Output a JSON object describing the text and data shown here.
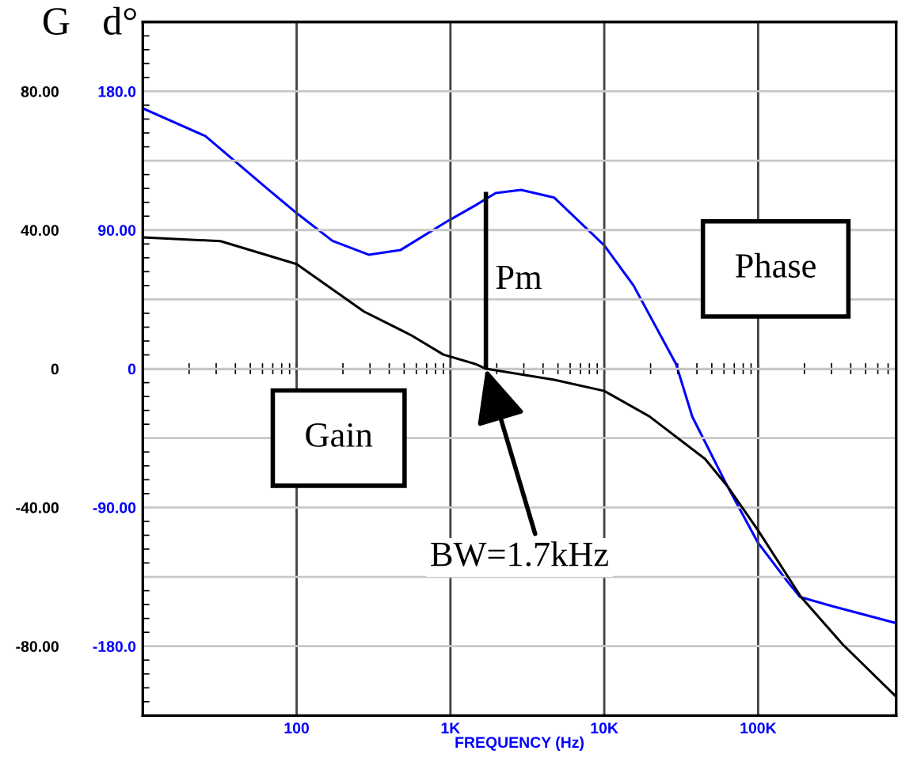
{
  "chart_data": {
    "type": "line",
    "xlabel": "FREQUENCY (Hz)",
    "ylabel": "G",
    "y2label": "d°",
    "log": "x",
    "xlim": [
      10,
      790000
    ],
    "xticks": [
      100,
      {
        "value": 1000,
        "label": "1K"
      },
      {
        "value": 10000,
        "label": "10K"
      },
      {
        "value": 100000,
        "label": "100K"
      }
    ],
    "ylim": [
      -100,
      100
    ],
    "yticks": [
      {
        "value": -80,
        "label": "-80.00"
      },
      {
        "value": -60,
        "label": null
      },
      {
        "value": -40,
        "label": "-40.00"
      },
      {
        "value": -20,
        "label": null
      },
      0,
      {
        "value": 20,
        "label": null
      },
      {
        "value": 40,
        "label": "40.00"
      },
      {
        "value": 60,
        "label": null
      },
      {
        "value": 80,
        "label": "80.00"
      }
    ],
    "y2lim": [
      -225,
      225
    ],
    "y2ticks": [
      {
        "value": -180,
        "label": "-180.0"
      },
      {
        "value": -90,
        "label": "-90.00"
      },
      0,
      {
        "value": 90,
        "label": "90.00"
      },
      {
        "value": 180,
        "label": "180.0"
      }
    ],
    "grid": true,
    "marker": "none",
    "line_style": "solid",
    "series": [
      {
        "color": "#000000",
        "x": [
          10,
          32,
          100,
          274,
          559,
          899,
          1450,
          1700,
          4732,
          10000,
          19600,
          45200,
          63000,
          100000,
          190000,
          355000,
          790000
        ],
        "values": [
          37.9,
          36.8,
          30.2,
          16.5,
          9.6,
          4.1,
          1.4,
          0,
          -3.2,
          -6.4,
          -13.7,
          -26,
          -33.8,
          -46.6,
          -65.8,
          -79.5,
          -94.6
        ]
      },
      {
        "color": "#0000ff",
        "axis": "y2",
        "x": [
          10,
          25.5,
          66,
          100,
          171,
          294,
          473,
          966,
          1450,
          1967,
          2877,
          4732,
          10000,
          15500,
          29300,
          37300,
          63000,
          100000,
          155000,
          187000,
          302000,
          790000
        ],
        "values": [
          169,
          151,
          116,
          101,
          83,
          74,
          77,
          96,
          106,
          114,
          116,
          111,
          80,
          54,
          3,
          -31,
          -76,
          -113,
          -138,
          -148,
          -154,
          -165
        ]
      }
    ],
    "annotations": [
      {
        "text": "Pm",
        "x": 1700,
        "y": 51
      },
      "Phase",
      "Gain",
      {
        "text": "BW=1.7kHz",
        "x": 1700,
        "y": 0
      }
    ]
  }
}
